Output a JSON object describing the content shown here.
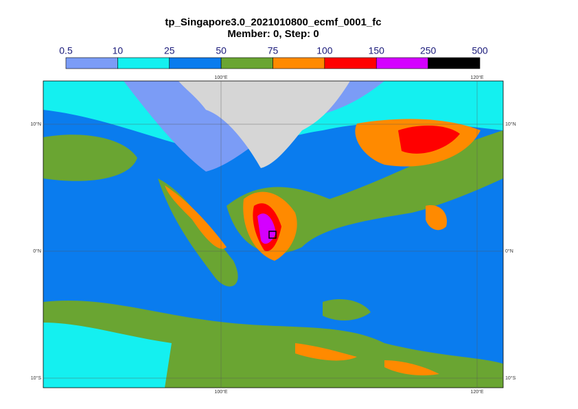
{
  "title": "tp_Singapore3.0_2021010800_ecmf_0001_fc",
  "subtitle": "Member: 0, Step: 0",
  "colorbar": {
    "levels": [
      0.5,
      10,
      25,
      50,
      75,
      100,
      150,
      250,
      500
    ],
    "colors": [
      "#7b9cf6",
      "#14f0f0",
      "#0a7cee",
      "#6aa532",
      "#ff8a00",
      "#ff0000",
      "#d400ff",
      "#000000"
    ]
  },
  "map": {
    "lon_labels": [
      "100°E",
      "120°E"
    ],
    "lat_labels": [
      "10°N",
      "0°N",
      "10°S"
    ]
  }
}
